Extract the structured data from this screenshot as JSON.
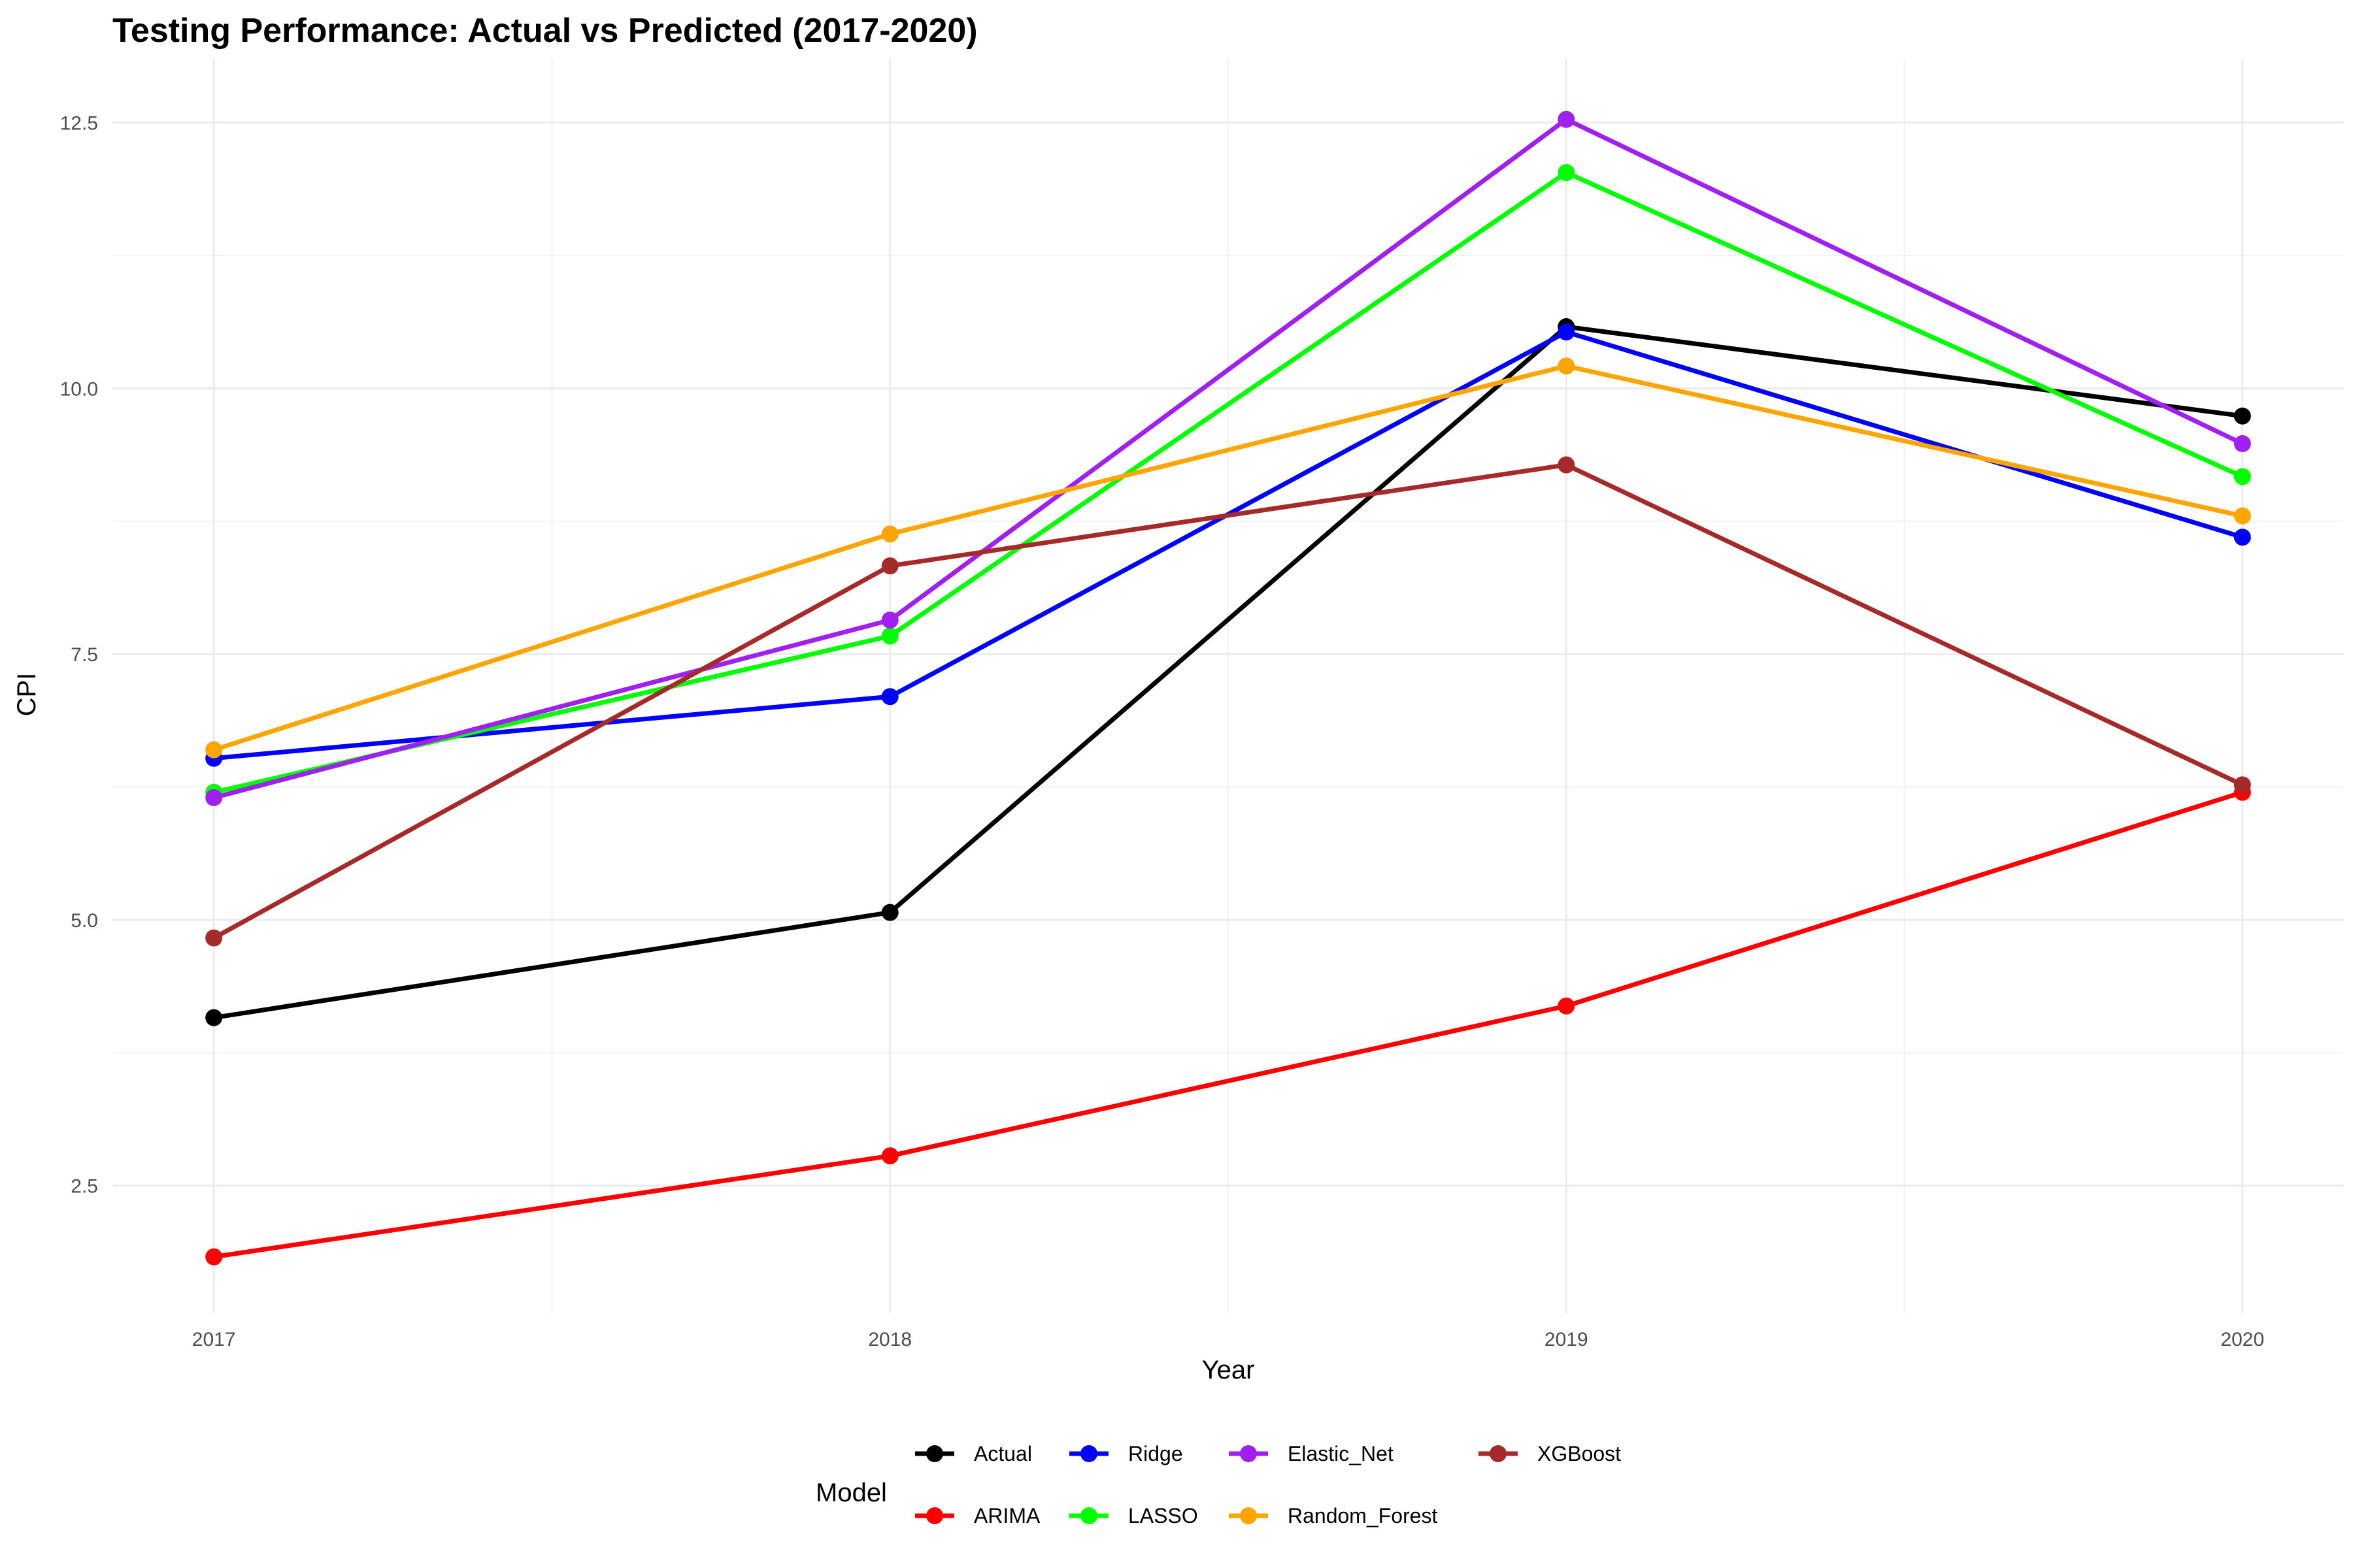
{
  "chart_data": {
    "type": "line",
    "title": "Testing Performance: Actual vs Predicted (2017-2020)",
    "xlabel": "Year",
    "ylabel": "CPI",
    "x": [
      2017,
      2018,
      2019,
      2020
    ],
    "x_tick_labels": [
      "2017",
      "2018",
      "2019",
      "2020"
    ],
    "y_ticks": [
      2.5,
      5.0,
      7.5,
      10.0,
      12.5
    ],
    "y_tick_labels": [
      "2.5",
      "5.0",
      "7.5",
      "10.0",
      "12.5"
    ],
    "xlim": [
      2016.85,
      2020.15
    ],
    "ylim": [
      1.3,
      13.1
    ],
    "grid": true,
    "legend": {
      "title": "Model",
      "position": "bottom"
    },
    "series": [
      {
        "name": "Actual",
        "color": "#000000",
        "values": [
          4.08,
          5.07,
          10.58,
          9.74
        ]
      },
      {
        "name": "ARIMA",
        "color": "#ff0000",
        "values": [
          1.83,
          2.78,
          4.19,
          6.2
        ]
      },
      {
        "name": "Ridge",
        "color": "#0000ff",
        "values": [
          6.52,
          7.1,
          10.53,
          8.6
        ]
      },
      {
        "name": "LASSO",
        "color": "#00ff00",
        "values": [
          6.2,
          7.67,
          12.03,
          9.17
        ]
      },
      {
        "name": "Elastic_Net",
        "color": "#a020f0",
        "values": [
          6.15,
          7.82,
          12.53,
          9.48
        ]
      },
      {
        "name": "Random_Forest",
        "color": "#ffa500",
        "values": [
          6.6,
          8.63,
          10.21,
          8.8
        ]
      },
      {
        "name": "XGBoost",
        "color": "#a52a2a",
        "values": [
          4.83,
          8.33,
          9.28,
          6.27
        ]
      }
    ]
  }
}
